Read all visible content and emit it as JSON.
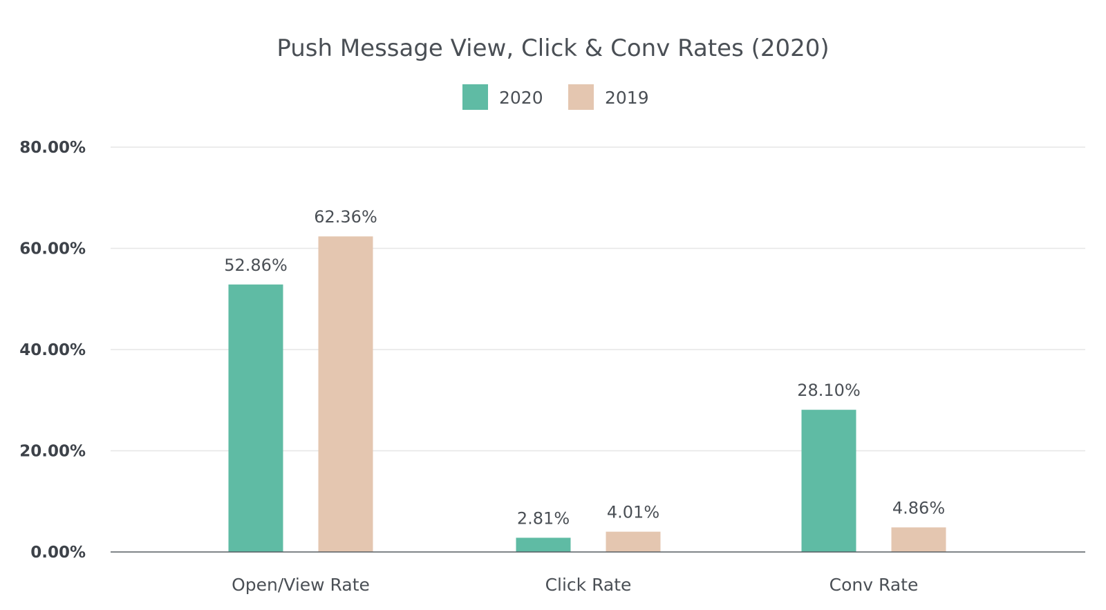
{
  "chart_data": {
    "type": "bar",
    "title": "Push Message View, Click & Conv Rates (2020)",
    "categories": [
      "Open/View Rate",
      "Click Rate",
      "Conv Rate"
    ],
    "series": [
      {
        "name": "2020",
        "values": [
          52.86,
          2.81,
          28.1
        ],
        "labels": [
          "52.86%",
          "2.81%",
          "28.10%"
        ],
        "color": "#5fbba4"
      },
      {
        "name": "2019",
        "values": [
          62.36,
          4.01,
          4.86
        ],
        "labels": [
          "62.36%",
          "4.01%",
          "4.86%"
        ],
        "color": "#e4c6b0"
      }
    ],
    "ylim": [
      0,
      80
    ],
    "yticks": [
      0,
      20,
      40,
      60,
      80
    ],
    "ytick_labels": [
      "0.00%",
      "20.00%",
      "40.00%",
      "60.00%",
      "80.00%"
    ],
    "xlabel": "",
    "ylabel": "",
    "grid": true,
    "legend_position": "top-center"
  }
}
